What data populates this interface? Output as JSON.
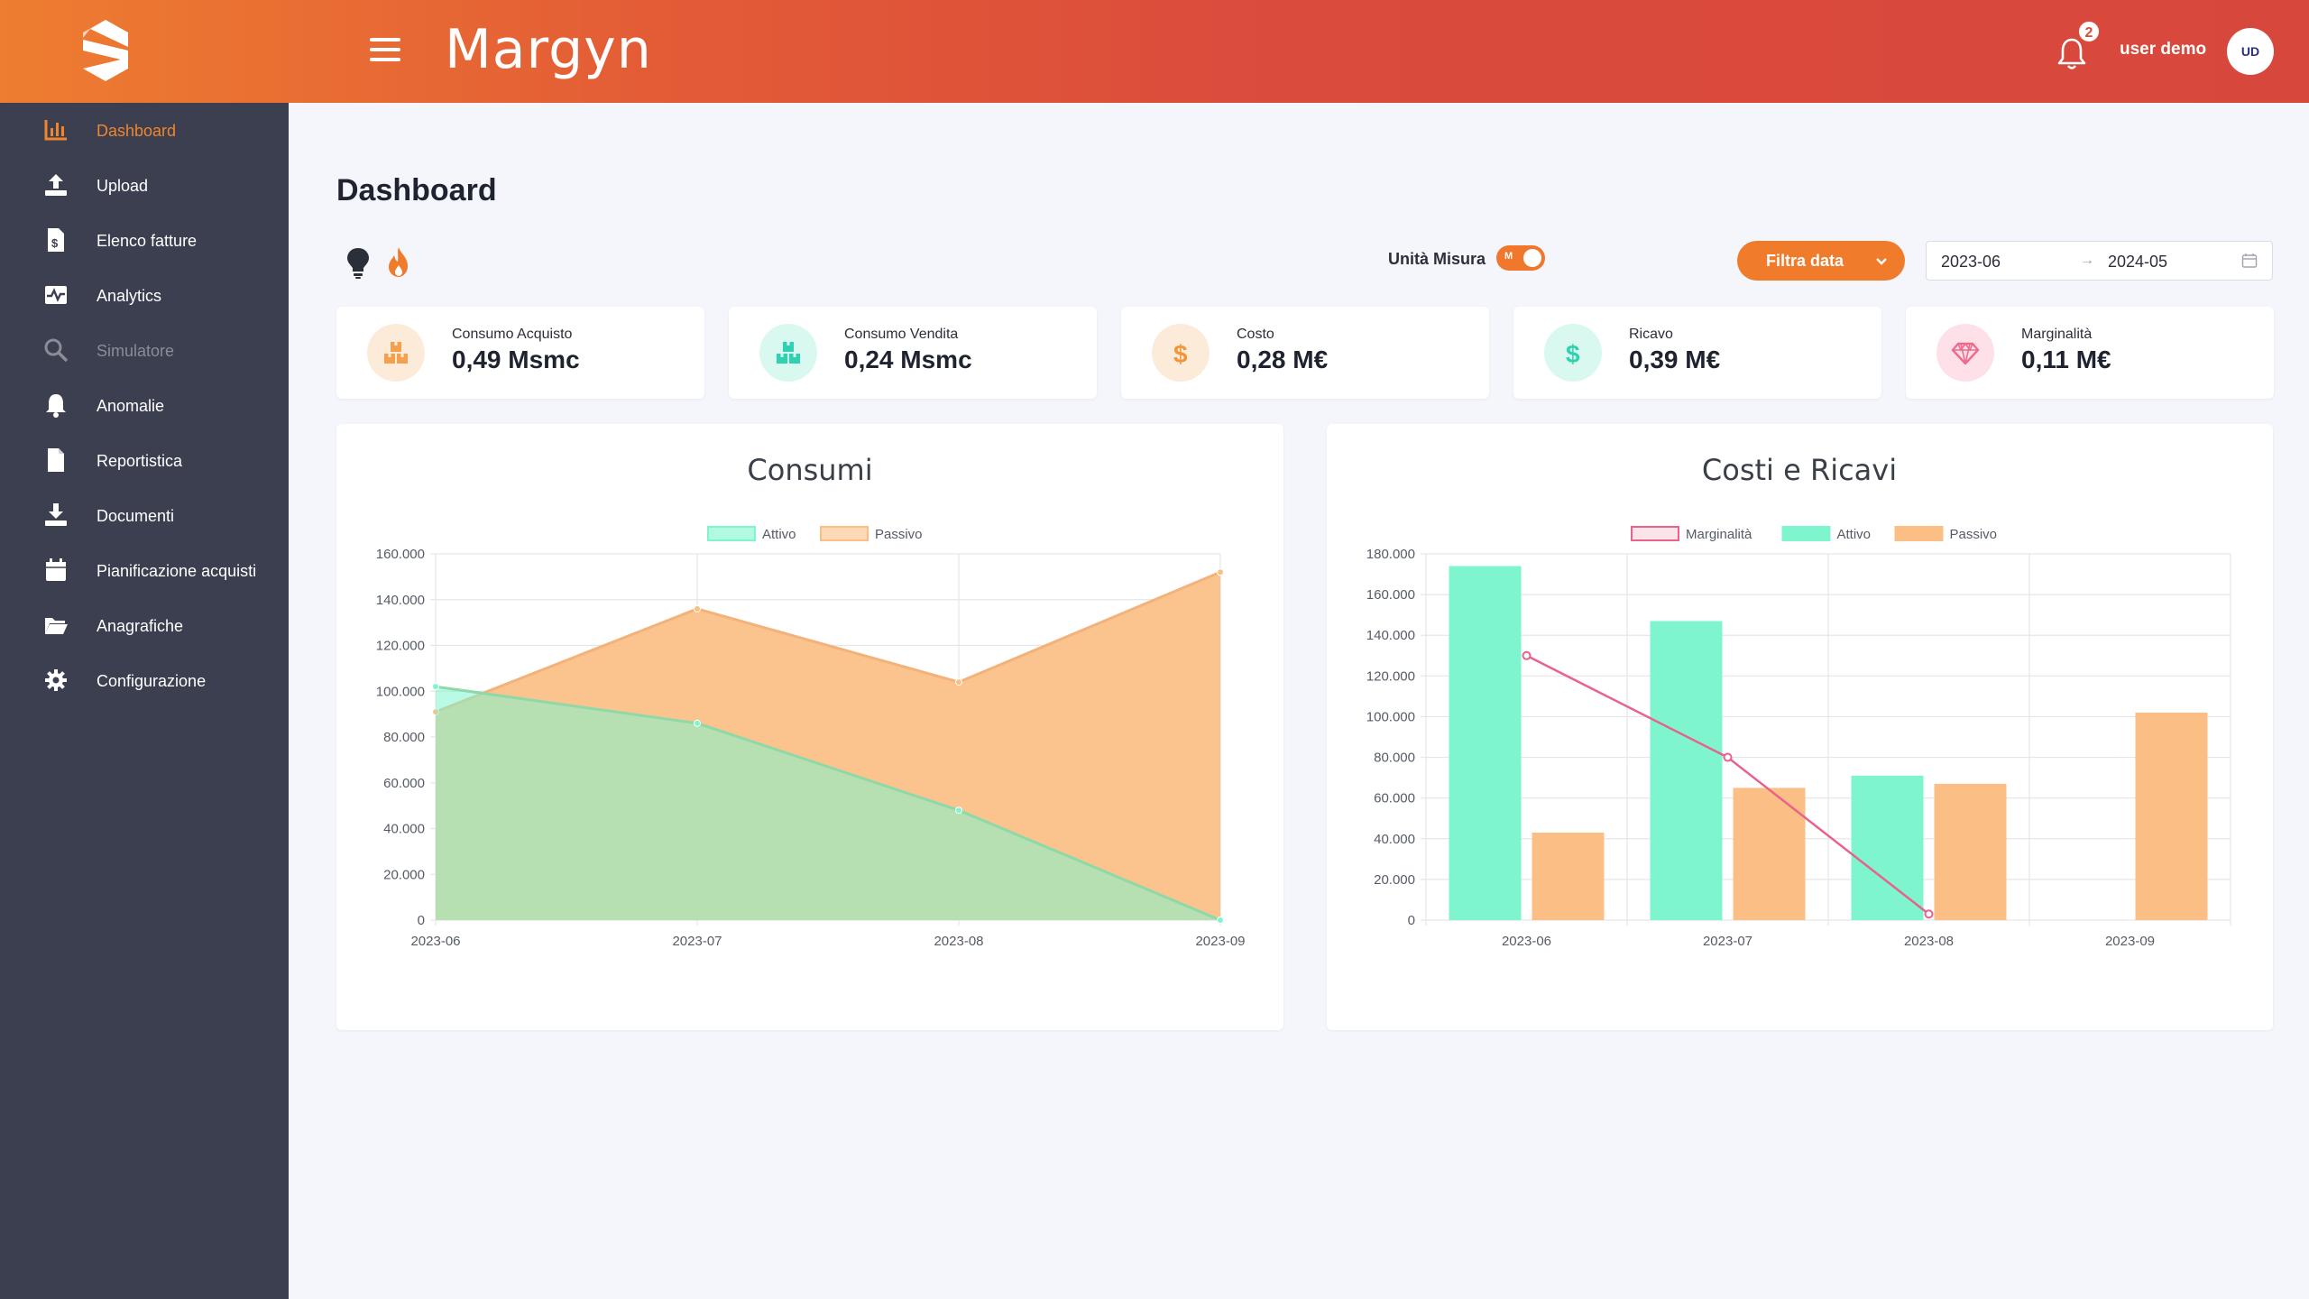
{
  "header": {
    "app_title": "Margyn",
    "notification_count": "2",
    "username": "user demo",
    "avatar_initials": "UD"
  },
  "sidebar": {
    "items": [
      {
        "label": "Dashboard",
        "icon": "bar-chart-icon",
        "state": "active"
      },
      {
        "label": "Upload",
        "icon": "upload-icon",
        "state": "normal"
      },
      {
        "label": "Elenco fatture",
        "icon": "invoice-icon",
        "state": "normal"
      },
      {
        "label": "Analytics",
        "icon": "analytics-icon",
        "state": "normal"
      },
      {
        "label": "Simulatore",
        "icon": "search-icon",
        "state": "disabled"
      },
      {
        "label": "Anomalie",
        "icon": "bell-icon",
        "state": "normal"
      },
      {
        "label": "Reportistica",
        "icon": "file-icon",
        "state": "normal"
      },
      {
        "label": "Documenti",
        "icon": "download-icon",
        "state": "normal"
      },
      {
        "label": "Pianificazione acquisti",
        "icon": "calendar-icon",
        "state": "normal"
      },
      {
        "label": "Anagrafiche",
        "icon": "folder-icon",
        "state": "normal"
      },
      {
        "label": "Configurazione",
        "icon": "gear-icon",
        "state": "normal"
      }
    ]
  },
  "main": {
    "page_title": "Dashboard",
    "tool_icons": [
      "lightbulb-icon",
      "flame-icon"
    ],
    "unit_toggle": {
      "label": "Unità Misura",
      "value": "M",
      "on": true
    },
    "filter_button": "Filtra data",
    "date_range": {
      "start": "2023-06",
      "end": "2024-05",
      "separator": "→"
    }
  },
  "kpis": [
    {
      "label": "Consumo Acquisto",
      "value": "0,49 Msmc",
      "icon": "boxes-icon",
      "color": "#f5a04f",
      "bg": "#fdebd9"
    },
    {
      "label": "Consumo Vendita",
      "value": "0,24 Msmc",
      "icon": "boxes-icon",
      "color": "#2fd1b0",
      "bg": "#d9f8f0"
    },
    {
      "label": "Costo",
      "value": "0,28 M€",
      "icon": "dollar-icon",
      "color": "#f0963a",
      "bg": "#fdebd9"
    },
    {
      "label": "Ricavo",
      "value": "0,39 M€",
      "icon": "dollar-icon",
      "color": "#2fd1b0",
      "bg": "#d9f8f0"
    },
    {
      "label": "Marginalità",
      "value": "0,11 M€",
      "icon": "diamond-icon",
      "color": "#ee6b8d",
      "bg": "#fde0e8"
    }
  ],
  "chart_data": [
    {
      "type": "area",
      "title": "Consumi",
      "categories": [
        "2023-06",
        "2023-07",
        "2023-08",
        "2023-09"
      ],
      "ylim": [
        0,
        160000
      ],
      "yticks": [
        "0",
        "20.000",
        "40.000",
        "60.000",
        "80.000",
        "100.000",
        "120.000",
        "140.000",
        "160.000"
      ],
      "legend_position": "top",
      "grid": true,
      "series": [
        {
          "name": "Attivo",
          "values": [
            102000,
            86000,
            48000,
            0
          ],
          "color": "#7ef5cf"
        },
        {
          "name": "Passivo",
          "values": [
            91000,
            136000,
            104000,
            152000
          ],
          "color": "#fbbf85"
        }
      ]
    },
    {
      "type": "bar",
      "title": "Costi e Ricavi",
      "categories": [
        "2023-06",
        "2023-07",
        "2023-08",
        "2023-09"
      ],
      "ylim": [
        0,
        180000
      ],
      "yticks": [
        "0",
        "20.000",
        "40.000",
        "60.000",
        "80.000",
        "100.000",
        "120.000",
        "140.000",
        "160.000",
        "180.000"
      ],
      "legend_position": "top",
      "grid": true,
      "series": [
        {
          "name": "Marginalità",
          "type": "line",
          "values": [
            130000,
            80000,
            3000,
            null
          ],
          "color": "#e8628a"
        },
        {
          "name": "Attivo",
          "type": "bar",
          "values": [
            174000,
            147000,
            71000,
            0
          ],
          "color": "#7ef5cf"
        },
        {
          "name": "Passivo",
          "type": "bar",
          "values": [
            43000,
            65000,
            67000,
            102000
          ],
          "color": "#fbbf85"
        }
      ]
    }
  ]
}
